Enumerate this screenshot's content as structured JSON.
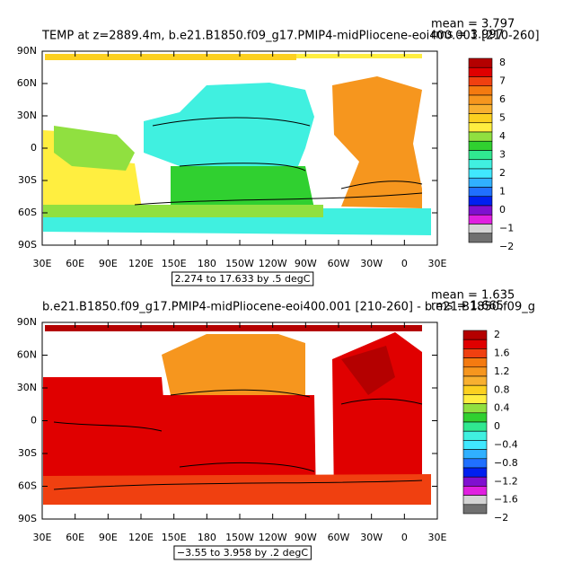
{
  "panels": [
    {
      "title": "TEMP at z=2889.4m, b.e21.B1850.f09_g17.PMIP4-midPliocene-eoi400.001 [210-260]",
      "mean": "mean = 3.797",
      "rms": "rms = 3.997",
      "contour_info": "2.274 to 17.633 by .5 degC",
      "colorbar": {
        "labels": [
          "8",
          "7",
          "6",
          "5",
          "4",
          "3",
          "2",
          "1",
          "0",
          "−1",
          "−2"
        ],
        "colors": [
          "#b40000",
          "#e00000",
          "#f04010",
          "#f47a10",
          "#f6961e",
          "#f8b030",
          "#fcd020",
          "#ffee40",
          "#90e040",
          "#30d030",
          "#30e890",
          "#40f0e0",
          "#40e8ff",
          "#30b0ff",
          "#2070ff",
          "#0020f0",
          "#8010d0",
          "#e020e0",
          "#d4d4d4",
          "#707070"
        ]
      }
    },
    {
      "title": "b.e21.B1850.f09_g17.PMIP4-midPliocene-eoi400.001 [210-260] - b.e21.B1850.f09_g",
      "mean": "mean = 1.635",
      "rms": "rms = 1.665",
      "contour_info": "−3.55 to 3.958 by .2 degC",
      "colorbar": {
        "labels": [
          "2",
          "1.6",
          "1.2",
          "0.8",
          "0.4",
          "0",
          "−0.4",
          "−0.8",
          "−1.2",
          "−1.6",
          "−2"
        ],
        "colors": [
          "#b40000",
          "#e00000",
          "#f04010",
          "#f47a10",
          "#f6961e",
          "#f8b030",
          "#fcd020",
          "#ffee40",
          "#90e040",
          "#30d030",
          "#30e890",
          "#40f0e0",
          "#40e8ff",
          "#30b0ff",
          "#2070ff",
          "#0020f0",
          "#8010d0",
          "#e020e0",
          "#d4d4d4",
          "#707070"
        ]
      }
    }
  ],
  "lat_labels": [
    "90N",
    "60N",
    "30N",
    "0",
    "30S",
    "60S",
    "90S"
  ],
  "lon_labels": [
    "30E",
    "60E",
    "90E",
    "120E",
    "150E",
    "180",
    "150W",
    "120W",
    "90W",
    "60W",
    "30W",
    "0",
    "30E"
  ]
}
